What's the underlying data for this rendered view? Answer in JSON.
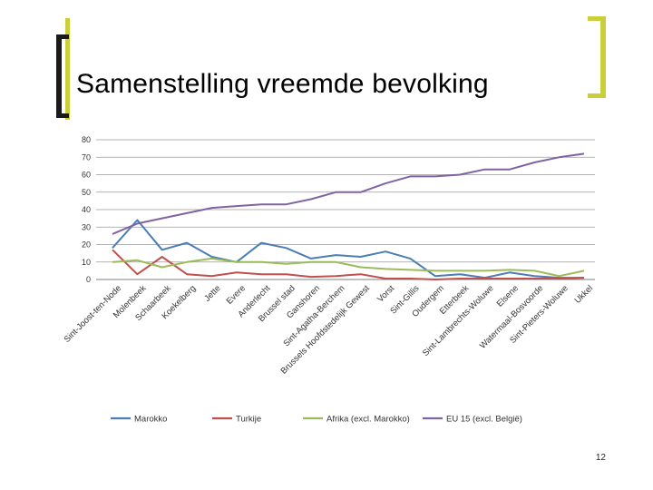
{
  "slide": {
    "title": "Samenstelling vreemde bevolking",
    "page_number": "12"
  },
  "chart_data": {
    "type": "line",
    "categories": [
      "Sint-Joost-ten-Node",
      "Molenbeek",
      "Schaarbeek",
      "Koekelberg",
      "Jette",
      "Evere",
      "Anderlecht",
      "Brussel stad",
      "Ganshoren",
      "Sint-Agatha-Berchem",
      "Brussels Hoofdstedelijk Gewest",
      "Vorst",
      "Sint-Gillis",
      "Oudergem",
      "Etterbeek",
      "Sint-Lambrechts-Woluwe",
      "Elsene",
      "Watermaal-Bosvoorde",
      "Sint-Pieters-Woluwe",
      "Ukkel"
    ],
    "series": [
      {
        "name": "Marokko",
        "color": "#4a7eb5",
        "values": [
          18,
          34,
          17,
          21,
          13,
          10,
          21,
          18,
          12,
          14,
          13,
          16,
          12,
          2,
          3,
          1,
          4,
          2,
          1,
          1
        ]
      },
      {
        "name": "Turkije",
        "color": "#c0504d",
        "values": [
          17,
          3,
          13,
          3,
          2,
          4,
          3,
          3,
          1.5,
          2,
          3,
          0.5,
          0.5,
          0,
          0.5,
          0.5,
          0.5,
          0.5,
          0.5,
          1
        ]
      },
      {
        "name": "Afrika (excl. Marokko)",
        "color": "#9bbb59",
        "values": [
          10,
          11,
          7,
          10,
          12,
          10,
          10,
          9,
          10,
          10,
          7,
          6,
          5.5,
          5,
          5,
          5,
          5.5,
          5,
          2,
          5
        ]
      },
      {
        "name": "EU 15 (excl. België)",
        "color": "#8064a2",
        "values": [
          26,
          32,
          35,
          38,
          41,
          42,
          43,
          43,
          46,
          50,
          50,
          55,
          59,
          59,
          60,
          63,
          63,
          67,
          70,
          72
        ]
      }
    ],
    "y_ticks": [
      "0",
      "10",
      "20",
      "30",
      "40",
      "50",
      "60",
      "70",
      "80"
    ],
    "ylim": [
      0,
      80
    ],
    "grid": "horizontal",
    "legend": "bottom"
  }
}
